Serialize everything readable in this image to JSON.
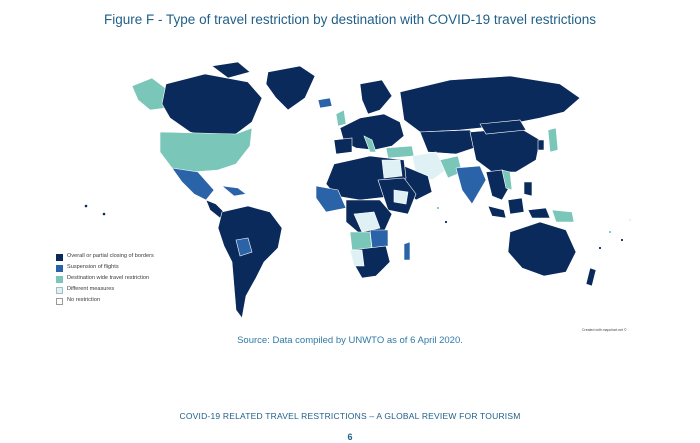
{
  "figure": {
    "title": "Figure F - Type of travel restriction by destination with COVID-19 travel restrictions"
  },
  "legend": {
    "items": [
      {
        "label": "Overall or partial closing of borders",
        "color": "#0b2a5c"
      },
      {
        "label": "Suspension of flights",
        "color": "#2a63a8"
      },
      {
        "label": "Destination wide travel restriction",
        "color": "#7ac7b9"
      },
      {
        "label": "Different measures",
        "color": "#dff1f4"
      },
      {
        "label": "No restriction",
        "color": "#ffffff"
      }
    ]
  },
  "source": "Source: Data compiled by UNWTO as of 6 April 2020.",
  "credit": "Created with mapchart.net ©",
  "footer": {
    "title": "COVID-19 RELATED TRAVEL RESTRICTIONS – A GLOBAL REVIEW FOR TOURISM",
    "page_number": "6"
  }
}
